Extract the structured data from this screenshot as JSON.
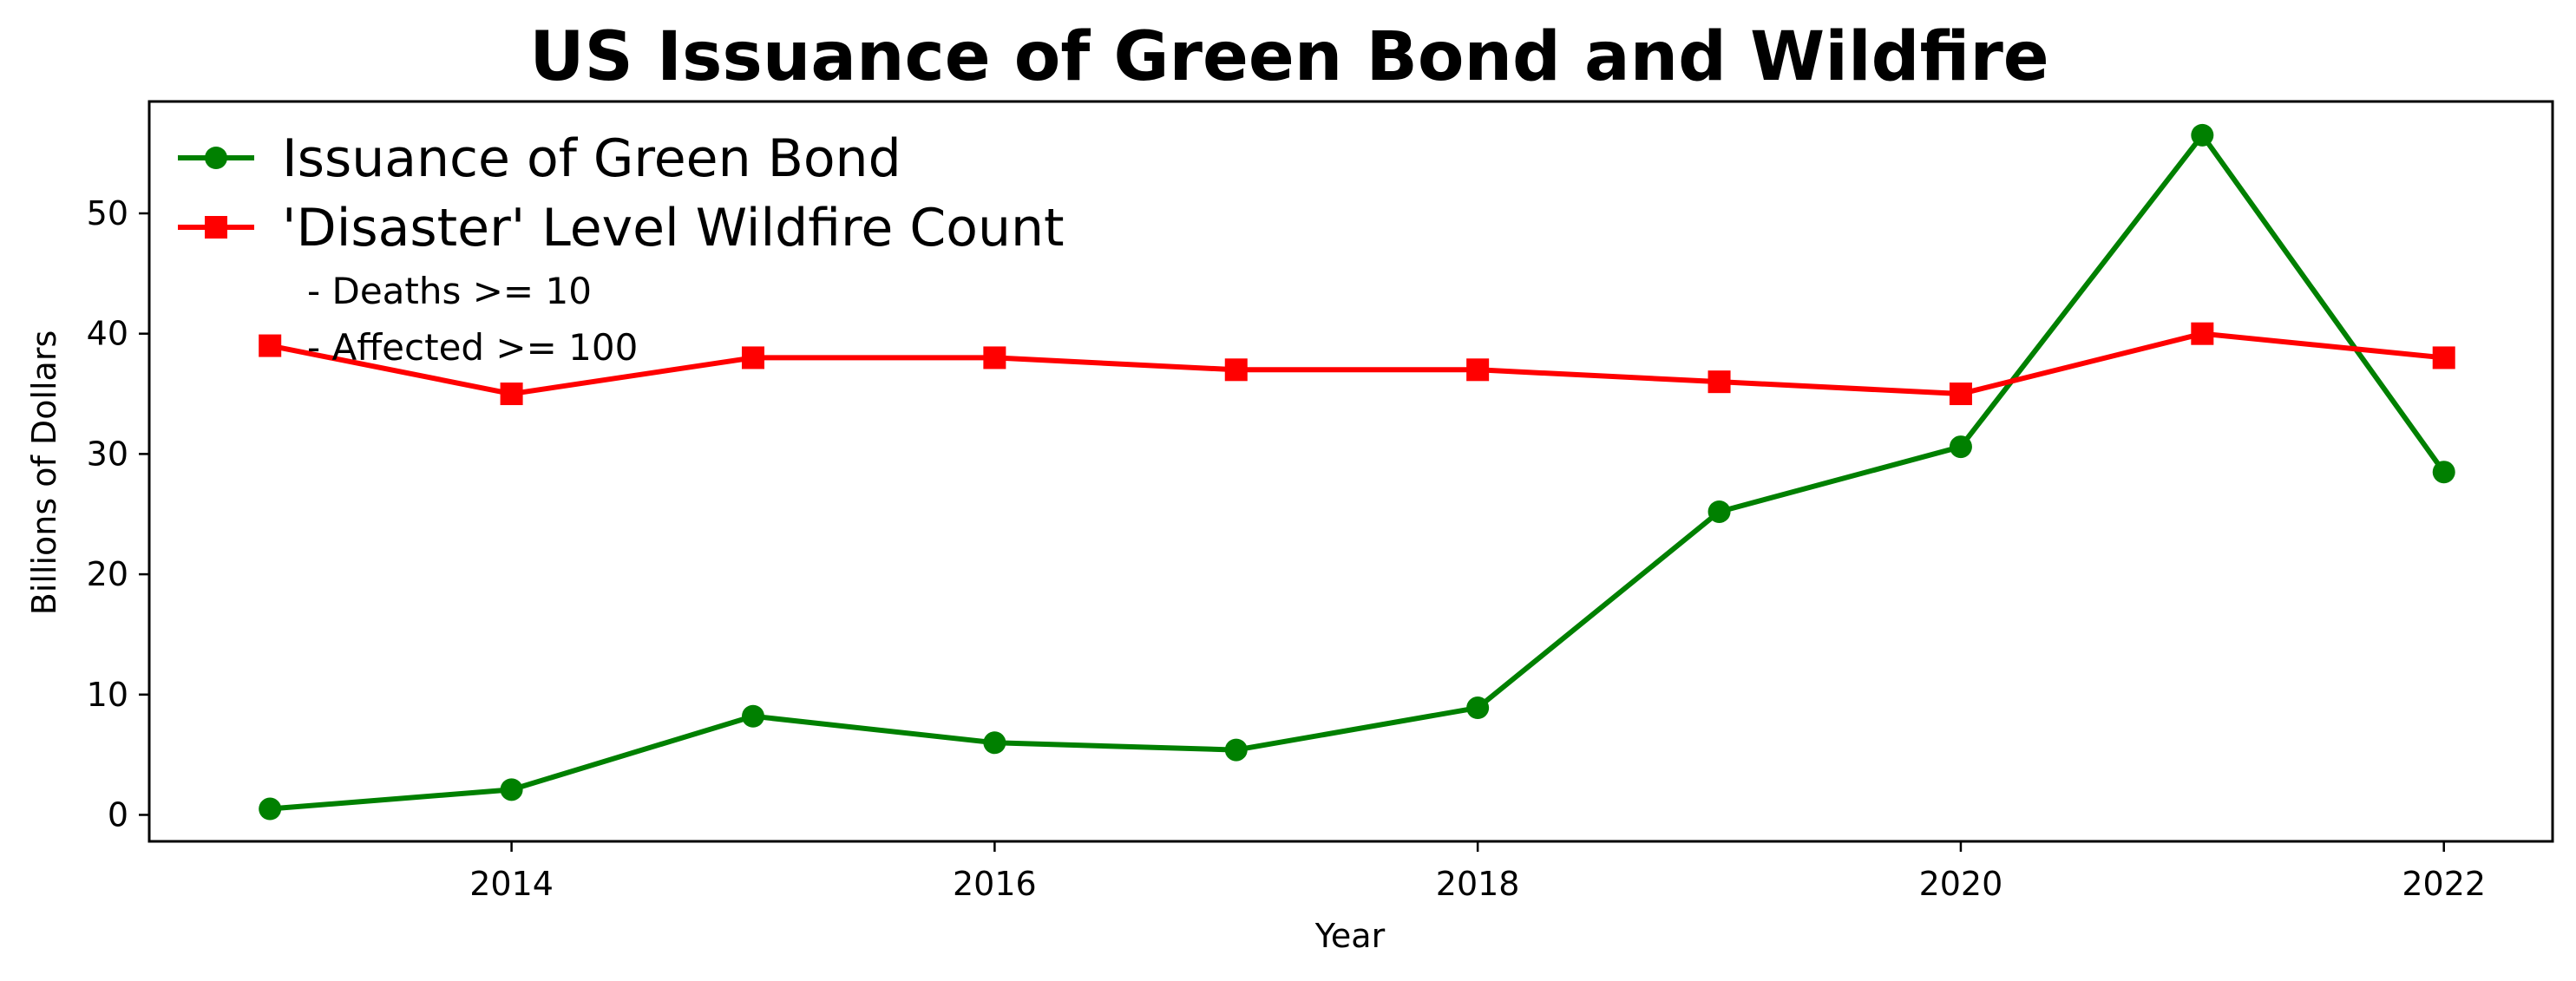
{
  "chart_data": {
    "type": "line",
    "title": "US Issuance of Green Bond and Wildfire",
    "xlabel": "Year",
    "ylabel": "Billions of Dollars",
    "x": [
      2013,
      2014,
      2015,
      2016,
      2017,
      2018,
      2019,
      2020,
      2021,
      2022
    ],
    "xlim": [
      2012.5,
      2022.45
    ],
    "ylim": [
      -2.2,
      59.3
    ],
    "xticks": [
      2014,
      2016,
      2018,
      2020,
      2022
    ],
    "yticks": [
      0,
      10,
      20,
      30,
      40,
      50
    ],
    "grid": false,
    "legend_position": "top-left",
    "series": [
      {
        "name": "Issuance of Green Bond",
        "color": "#008000",
        "marker": "circle",
        "values": [
          0.5,
          2.1,
          8.2,
          6.0,
          5.4,
          8.9,
          25.2,
          30.6,
          56.5,
          28.5
        ]
      },
      {
        "name": "'Disaster' Level Wildfire Count",
        "color": "#ff0000",
        "marker": "square",
        "values": [
          39,
          35,
          38,
          38,
          37,
          37,
          36,
          35,
          40,
          38
        ]
      }
    ],
    "legend_notes": [
      "- Deaths >= 10",
      "- Affected >= 100"
    ]
  }
}
